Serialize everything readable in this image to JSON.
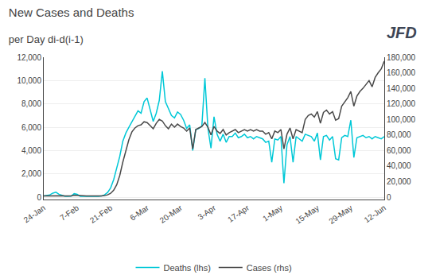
{
  "chart_data": {
    "type": "line",
    "title": "New Cases and Deaths",
    "subtitle": "  per Day di-d(i-1)",
    "annotations": [
      {
        "text": "JFD",
        "color": "#3d4555"
      }
    ],
    "categories": [
      "24-Jan",
      null,
      null,
      null,
      null,
      null,
      null,
      null,
      null,
      null,
      null,
      "7-Feb",
      null,
      null,
      null,
      null,
      null,
      null,
      null,
      null,
      null,
      null,
      "21-Feb",
      null,
      null,
      null,
      null,
      null,
      null,
      null,
      null,
      null,
      null,
      null,
      "6-Mar",
      null,
      null,
      null,
      null,
      null,
      null,
      null,
      null,
      null,
      null,
      "20-Mar",
      null,
      null,
      null,
      null,
      null,
      null,
      null,
      null,
      null,
      null,
      "3-Apr",
      null,
      null,
      null,
      null,
      null,
      null,
      null,
      null,
      null,
      null,
      "17-Apr",
      null,
      null,
      null,
      null,
      null,
      null,
      null,
      null,
      null,
      null,
      "1-May",
      null,
      null,
      null,
      null,
      null,
      null,
      null,
      null,
      null,
      null,
      null,
      "15-May",
      null,
      null,
      null,
      null,
      null,
      null,
      null,
      null,
      null,
      null,
      "29-May",
      null,
      null,
      null,
      null,
      null,
      null,
      null,
      null,
      null,
      null,
      "12-Jun"
    ],
    "series": [
      {
        "name": "Deaths (lhs)",
        "color": "#00c8d7",
        "axis": "y",
        "values": [
          100,
          130,
          200,
          350,
          430,
          250,
          150,
          80,
          70,
          90,
          300,
          250,
          80,
          70,
          80,
          100,
          80,
          70,
          80,
          100,
          200,
          400,
          800,
          1500,
          2500,
          3500,
          4800,
          5500,
          6000,
          6500,
          7000,
          7400,
          7200,
          8200,
          8500,
          7400,
          6500,
          7200,
          8300,
          10800,
          8200,
          7600,
          7000,
          6800,
          7300,
          7100,
          6600,
          5900,
          6200,
          4000,
          5800,
          5900,
          6100,
          10200,
          5900,
          4200,
          6900,
          5400,
          4800,
          5400,
          4700,
          5200,
          5200,
          5500,
          5100,
          5200,
          5400,
          5100,
          5200,
          5000,
          5200,
          5100,
          5000,
          4700,
          4800,
          3000,
          5000,
          4900,
          5200,
          1200,
          4500,
          5200,
          3000,
          5200,
          5000,
          4800,
          5400,
          5300,
          5200,
          4800,
          5500,
          3200,
          5200,
          5300,
          4900,
          5200,
          3300,
          3200,
          5100,
          5300,
          5200,
          6600,
          3400,
          5100,
          5200,
          5300,
          5100,
          5200,
          5000,
          5200,
          5100,
          5000,
          5200
        ]
      },
      {
        "name": "Cases (rhs)",
        "color": "#4a4a4a",
        "axis": "y2",
        "values": [
          1500,
          1600,
          1800,
          2000,
          2200,
          2000,
          1800,
          1600,
          1500,
          1600,
          2500,
          2200,
          1500,
          1400,
          1500,
          1600,
          1500,
          1400,
          1500,
          1600,
          2000,
          3000,
          5000,
          9000,
          16000,
          28000,
          45000,
          60000,
          74000,
          84000,
          89000,
          92000,
          93000,
          97000,
          96000,
          92000,
          88000,
          95000,
          100000,
          98000,
          92000,
          88000,
          94000,
          90000,
          94000,
          91000,
          89000,
          85000,
          89000,
          62000,
          87000,
          89000,
          91000,
          96000,
          90000,
          80000,
          91000,
          85000,
          82000,
          87000,
          80000,
          83000,
          85000,
          87000,
          83000,
          85000,
          87000,
          85000,
          87000,
          85000,
          87000,
          85000,
          85000,
          81000,
          83000,
          75000,
          85000,
          83000,
          87000,
          62000,
          81000,
          89000,
          75000,
          87000,
          85000,
          83000,
          100000,
          105000,
          107000,
          103000,
          110000,
          95000,
          109000,
          112000,
          107000,
          110000,
          99000,
          101000,
          117000,
          123000,
          128000,
          136000,
          117000,
          130000,
          136000,
          140000,
          145000,
          150000,
          142000,
          154000,
          160000,
          165000,
          175000
        ]
      }
    ],
    "ylim": [
      -200,
      12000
    ],
    "yticks": [
      0,
      {
        "value": 2000,
        "label": "2,000"
      },
      {
        "value": 4000,
        "label": "4,000"
      },
      {
        "value": 6000,
        "label": "6,000"
      },
      {
        "value": 8000,
        "label": "8,000"
      },
      {
        "value": 10000,
        "label": "10,000"
      },
      {
        "value": 12000,
        "label": "12,000"
      }
    ],
    "y2lim": [
      -3000,
      180000
    ],
    "y2ticks": [
      0,
      {
        "value": 20000,
        "label": "20,000"
      },
      {
        "value": 40000,
        "label": "40,000"
      },
      {
        "value": 60000,
        "label": "60,000"
      },
      {
        "value": 80000,
        "label": "80,000"
      },
      {
        "value": 100000,
        "label": "100,000"
      },
      {
        "value": 120000,
        "label": "120,000"
      },
      {
        "value": 140000,
        "label": "140,000"
      },
      {
        "value": 160000,
        "label": "160,000"
      },
      {
        "value": 180000,
        "label": "180,000"
      }
    ],
    "grid": true,
    "legend": "bottom"
  }
}
